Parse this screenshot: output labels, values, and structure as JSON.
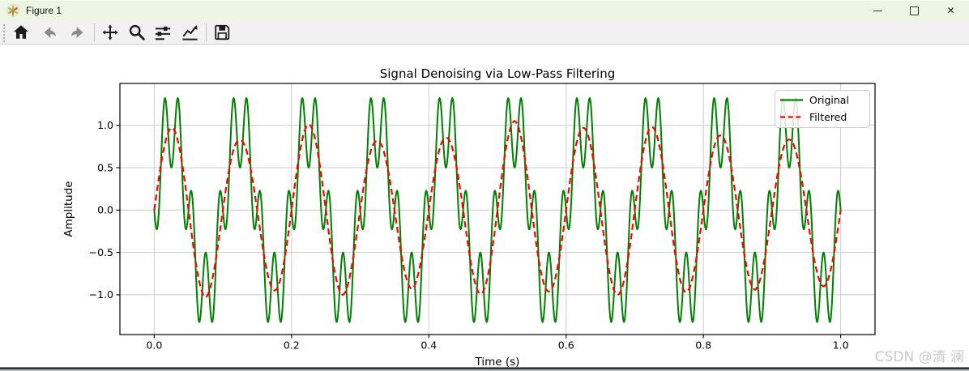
{
  "window": {
    "title": "Figure 1",
    "app_icon": "matplotlib-logo-icon",
    "controls": [
      {
        "name": "minimize"
      },
      {
        "name": "maximize"
      },
      {
        "name": "close",
        "glyph": "✕"
      }
    ]
  },
  "toolbar": {
    "buttons": [
      {
        "name": "home",
        "icon": "home-icon",
        "enabled": true
      },
      {
        "name": "back",
        "icon": "arrow-left-icon",
        "enabled": false
      },
      {
        "name": "forward",
        "icon": "arrow-right-icon",
        "enabled": false
      },
      {
        "name": "pan",
        "icon": "move-cross-icon",
        "enabled": true
      },
      {
        "name": "zoom",
        "icon": "magnifier-icon",
        "enabled": true
      },
      {
        "name": "configure-subplots",
        "icon": "sliders-icon",
        "enabled": true
      },
      {
        "name": "edit-axes",
        "icon": "chart-arrow-icon",
        "enabled": true
      },
      {
        "name": "save",
        "icon": "floppy-disk-icon",
        "enabled": true
      }
    ]
  },
  "chart_data": {
    "type": "line",
    "title": "Signal Denoising via Low-Pass Filtering",
    "xlabel": "Time (s)",
    "ylabel": "Amplitude",
    "xlim": [
      -0.05,
      1.05
    ],
    "ylim": [
      -1.469,
      1.494
    ],
    "x_ticks": [
      "0.0",
      "0.2",
      "0.4",
      "0.6",
      "0.8",
      "1.0"
    ],
    "x_tick_values": [
      0,
      0.2,
      0.4,
      0.6,
      0.8,
      1.0
    ],
    "y_ticks": [
      "1.0",
      "0.5",
      "0.0",
      "−0.5",
      "−1.0"
    ],
    "y_tick_values": [
      1.0,
      0.5,
      0.0,
      -0.5,
      -1.0
    ],
    "grid": true,
    "grid_color": "#cccccc",
    "legend_position": "upper right",
    "series": [
      {
        "name": "Original",
        "color": "#008000",
        "style": "solid",
        "line_width": 2,
        "model": "sin(2π·10·t) − 0.5·sin(2π·50·t)",
        "components": [
          {
            "freq_hz": 10,
            "amplitude": 1.0,
            "phase_deg": 0
          },
          {
            "freq_hz": 50,
            "amplitude": 0.5,
            "phase_deg": 180
          }
        ],
        "t_start": 0,
        "t_end": 1,
        "sample_step": 0.000625,
        "peak_value": 1.31,
        "trough_value": -1.31,
        "fundamental_period_s": 0.1
      },
      {
        "name": "Filtered",
        "color": "#ff0000",
        "style": "dashed",
        "line_width": 2.2,
        "model": "A(t)·sin(2π·10·t) with slowly varying envelope A(t)",
        "base_freq_hz": 10,
        "envelope_t": [
          0,
          0.025,
          0.075,
          0.125,
          0.175,
          0.225,
          0.275,
          0.325,
          0.375,
          0.425,
          0.475,
          0.525,
          0.575,
          0.625,
          0.675,
          0.725,
          0.775,
          0.825,
          0.875,
          0.925,
          0.975,
          1.0
        ],
        "envelope_a": [
          0.9,
          0.97,
          1.03,
          0.82,
          0.95,
          1.01,
          1.0,
          0.81,
          0.93,
          0.85,
          0.99,
          1.05,
          0.96,
          0.97,
          1.0,
          0.98,
          0.97,
          0.88,
          0.94,
          0.83,
          0.9,
          0.88
        ],
        "t_start": 0,
        "t_end": 1,
        "sample_step": 0.000625
      }
    ]
  },
  "watermark": {
    "text": "CSDN @清 澜",
    "color": "#c9c9c9"
  }
}
